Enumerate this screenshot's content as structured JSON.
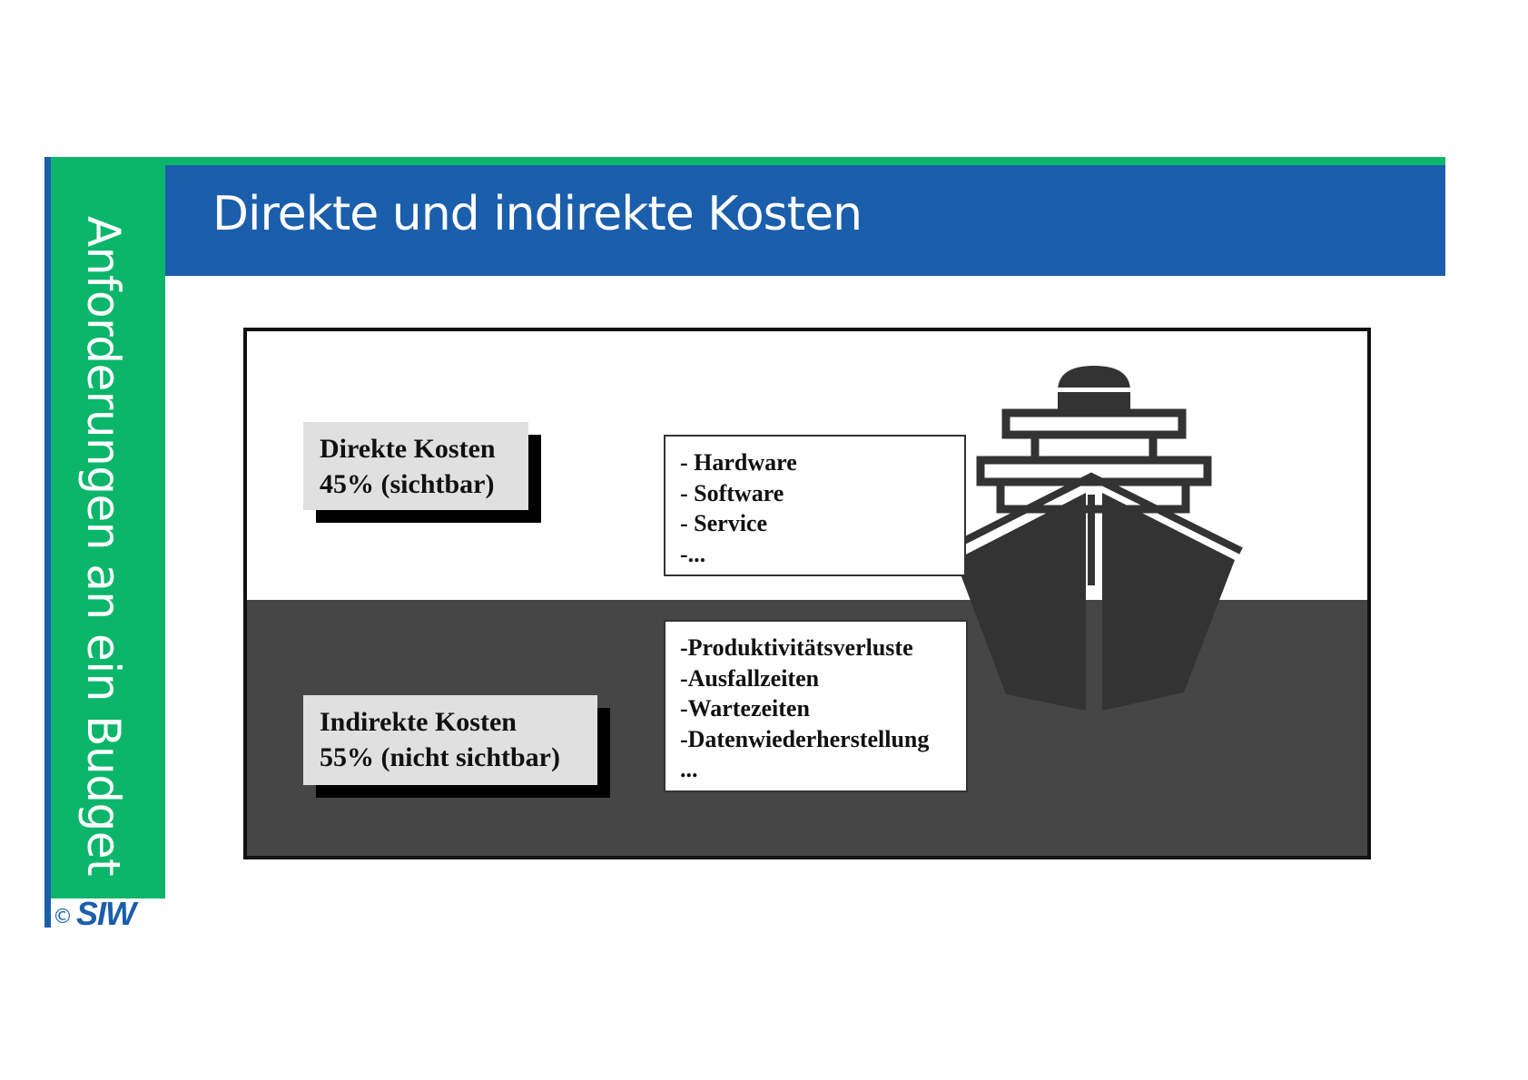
{
  "sidebar": {
    "title": "Anforderungen an ein Budget",
    "copyright": "©",
    "logo": "SIW"
  },
  "header": {
    "title": "Direkte und indirekte Kosten"
  },
  "diagram": {
    "direct_costs": {
      "title": "Direkte Kosten",
      "share": "45% (sichtbar)",
      "items": [
        "- Hardware",
        "- Software",
        "- Service",
        "-..."
      ]
    },
    "indirect_costs": {
      "title": "Indirekte Kosten",
      "share": "55% (nicht sichtbar)",
      "items": [
        "-Produktivitätsverluste",
        "-Ausfallzeiten",
        "-Wartezeiten",
        "-Datenwiederherstellung",
        "..."
      ]
    },
    "ship_icon": "ship-icon",
    "colors": {
      "water": "#464646",
      "ship": "#333333",
      "label_background": "#e0e0e0"
    }
  },
  "colors": {
    "accent_green": "#0bb66b",
    "accent_blue": "#1b5eab"
  }
}
